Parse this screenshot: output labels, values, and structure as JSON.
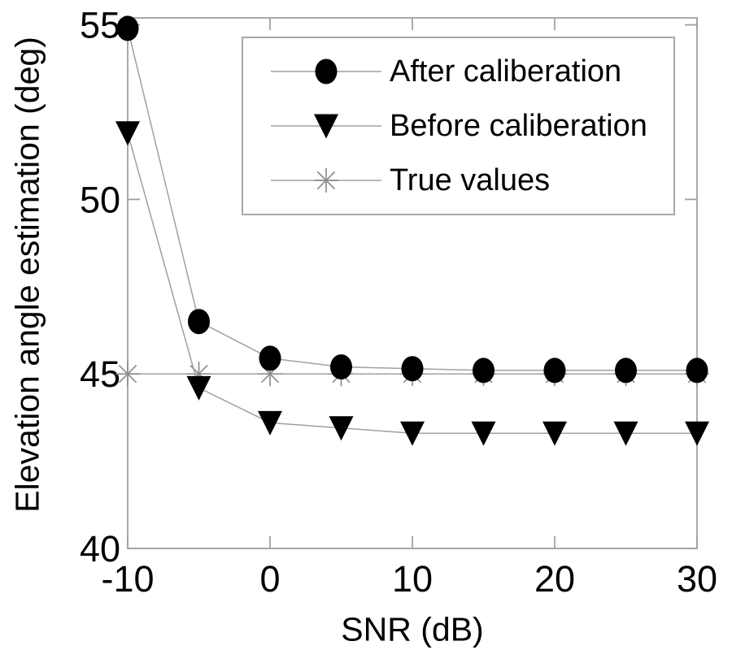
{
  "figure": {
    "background": "#ffffff"
  },
  "chart_data": {
    "type": "line",
    "title": "",
    "xlabel": "SNR (dB)",
    "ylabel": "Elevation angle estimation (deg)",
    "x": [
      -10,
      -5,
      0,
      5,
      10,
      15,
      20,
      25,
      30
    ],
    "series": [
      {
        "name": "After caliberation",
        "marker": "filled-circle",
        "marker_color": "#000000",
        "line_color": "#a0a0a0",
        "values": [
          54.9,
          46.5,
          45.45,
          45.2,
          45.15,
          45.1,
          45.1,
          45.1,
          45.1
        ]
      },
      {
        "name": "Before caliberation",
        "marker": "filled-triangle-down",
        "marker_color": "#000000",
        "line_color": "#a0a0a0",
        "values": [
          51.9,
          44.6,
          43.6,
          43.45,
          43.3,
          43.3,
          43.3,
          43.3,
          43.3
        ]
      },
      {
        "name": "True values",
        "marker": "asterisk",
        "marker_color": "#8e8e8e",
        "line_color": "#a0a0a0",
        "values": [
          45,
          45,
          45,
          45,
          45,
          45,
          45,
          45,
          45
        ]
      }
    ],
    "xticks": [
      "-10",
      "0",
      "10",
      "20",
      "30"
    ],
    "xtick_values": [
      -10,
      0,
      10,
      20,
      30
    ],
    "yticks": [
      "40",
      "45",
      "50",
      "55"
    ],
    "ytick_values": [
      40,
      45,
      50,
      55
    ],
    "xlim": [
      -10,
      30
    ],
    "ylim": [
      40,
      55.2
    ],
    "grid": false,
    "legend_position": "upper-right-inside",
    "axis_color": "#a0a0a0",
    "text_color": "#000000"
  }
}
